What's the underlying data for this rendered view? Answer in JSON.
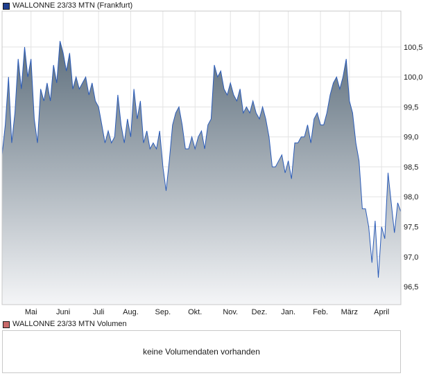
{
  "legend": {
    "price": {
      "label": "WALLONNE 23/33 MTN (Frankfurt)",
      "color": "#1f3f8f"
    },
    "volume": {
      "label": "WALLONNE 23/33 MTN Volumen",
      "color": "#c96a6a"
    }
  },
  "volume_panel": {
    "message": "keine Volumendaten vorhanden"
  },
  "chart_data": {
    "type": "area",
    "title": "",
    "xlabel": "",
    "ylabel": "",
    "ylim": [
      96.2,
      101.1
    ],
    "yticks": [
      96.5,
      97.0,
      97.5,
      98.0,
      98.5,
      99.0,
      99.5,
      100.0,
      100.5
    ],
    "ytick_labels": [
      "96,5",
      "97,0",
      "97,5",
      "98,0",
      "98,5",
      "99,0",
      "99,5",
      "100,0",
      "100,5"
    ],
    "xlim": [
      0,
      124
    ],
    "xticks": [
      {
        "label": "Mai",
        "t": 9
      },
      {
        "label": "Juni",
        "t": 19
      },
      {
        "label": "Juli",
        "t": 30
      },
      {
        "label": "Aug.",
        "t": 40
      },
      {
        "label": "Sep.",
        "t": 50
      },
      {
        "label": "Okt.",
        "t": 60
      },
      {
        "label": "Nov.",
        "t": 71
      },
      {
        "label": "Dez.",
        "t": 80
      },
      {
        "label": "Jan.",
        "t": 89
      },
      {
        "label": "Feb.",
        "t": 99
      },
      {
        "label": "März",
        "t": 108
      },
      {
        "label": "April",
        "t": 118
      }
    ],
    "grid": true,
    "line_color": "#2a5bb8",
    "fill_top": "#5d6e7c",
    "fill_bottom": "#f4f5f7",
    "series": [
      {
        "values": [
          [
            0,
            98.7
          ],
          [
            1,
            99.2
          ],
          [
            2,
            100.0
          ],
          [
            3,
            98.9
          ],
          [
            4,
            99.4
          ],
          [
            5,
            100.3
          ],
          [
            6,
            99.8
          ],
          [
            7,
            100.5
          ],
          [
            8,
            100.0
          ],
          [
            9,
            100.3
          ],
          [
            10,
            99.3
          ],
          [
            11,
            98.9
          ],
          [
            12,
            99.8
          ],
          [
            13,
            99.6
          ],
          [
            14,
            99.9
          ],
          [
            15,
            99.6
          ],
          [
            16,
            100.2
          ],
          [
            17,
            99.9
          ],
          [
            18,
            100.6
          ],
          [
            19,
            100.4
          ],
          [
            20,
            100.1
          ],
          [
            21,
            100.4
          ],
          [
            22,
            99.8
          ],
          [
            23,
            100.0
          ],
          [
            24,
            99.8
          ],
          [
            25,
            99.9
          ],
          [
            26,
            100.0
          ],
          [
            27,
            99.7
          ],
          [
            28,
            99.9
          ],
          [
            29,
            99.6
          ],
          [
            30,
            99.5
          ],
          [
            31,
            99.2
          ],
          [
            32,
            98.9
          ],
          [
            33,
            99.1
          ],
          [
            34,
            98.9
          ],
          [
            35,
            99.0
          ],
          [
            36,
            99.7
          ],
          [
            37,
            99.2
          ],
          [
            38,
            98.9
          ],
          [
            39,
            99.3
          ],
          [
            40,
            99.0
          ],
          [
            41,
            99.8
          ],
          [
            42,
            99.3
          ],
          [
            43,
            99.6
          ],
          [
            44,
            98.9
          ],
          [
            45,
            99.1
          ],
          [
            46,
            98.8
          ],
          [
            47,
            98.9
          ],
          [
            48,
            98.8
          ],
          [
            49,
            99.1
          ],
          [
            50,
            98.5
          ],
          [
            51,
            98.1
          ],
          [
            52,
            98.6
          ],
          [
            53,
            99.2
          ],
          [
            54,
            99.4
          ],
          [
            55,
            99.5
          ],
          [
            56,
            99.2
          ],
          [
            57,
            98.8
          ],
          [
            58,
            98.8
          ],
          [
            59,
            99.0
          ],
          [
            60,
            98.8
          ],
          [
            61,
            99.0
          ],
          [
            62,
            99.1
          ],
          [
            63,
            98.8
          ],
          [
            64,
            99.2
          ],
          [
            65,
            99.3
          ],
          [
            66,
            100.2
          ],
          [
            67,
            100.0
          ],
          [
            68,
            100.1
          ],
          [
            69,
            99.8
          ],
          [
            70,
            99.7
          ],
          [
            71,
            99.9
          ],
          [
            72,
            99.7
          ],
          [
            73,
            99.6
          ],
          [
            74,
            99.8
          ],
          [
            75,
            99.4
          ],
          [
            76,
            99.5
          ],
          [
            77,
            99.4
          ],
          [
            78,
            99.6
          ],
          [
            79,
            99.4
          ],
          [
            80,
            99.3
          ],
          [
            81,
            99.5
          ],
          [
            82,
            99.3
          ],
          [
            83,
            99.0
          ],
          [
            84,
            98.5
          ],
          [
            85,
            98.5
          ],
          [
            86,
            98.6
          ],
          [
            87,
            98.7
          ],
          [
            88,
            98.4
          ],
          [
            89,
            98.6
          ],
          [
            90,
            98.3
          ],
          [
            91,
            98.9
          ],
          [
            92,
            98.9
          ],
          [
            93,
            99.0
          ],
          [
            94,
            99.0
          ],
          [
            95,
            99.2
          ],
          [
            96,
            98.9
          ],
          [
            97,
            99.3
          ],
          [
            98,
            99.4
          ],
          [
            99,
            99.2
          ],
          [
            100,
            99.2
          ],
          [
            101,
            99.4
          ],
          [
            102,
            99.7
          ],
          [
            103,
            99.9
          ],
          [
            104,
            100.0
          ],
          [
            105,
            99.8
          ],
          [
            106,
            100.0
          ],
          [
            107,
            100.3
          ],
          [
            108,
            99.6
          ],
          [
            109,
            99.4
          ],
          [
            110,
            98.9
          ],
          [
            111,
            98.6
          ],
          [
            112,
            97.8
          ],
          [
            113,
            97.8
          ],
          [
            114,
            97.5
          ],
          [
            115,
            96.9
          ],
          [
            116,
            97.6
          ],
          [
            117,
            96.65
          ],
          [
            118,
            97.5
          ],
          [
            119,
            97.3
          ],
          [
            120,
            98.4
          ],
          [
            121,
            97.9
          ],
          [
            122,
            97.4
          ],
          [
            123,
            97.9
          ],
          [
            124,
            97.75
          ]
        ]
      }
    ]
  }
}
